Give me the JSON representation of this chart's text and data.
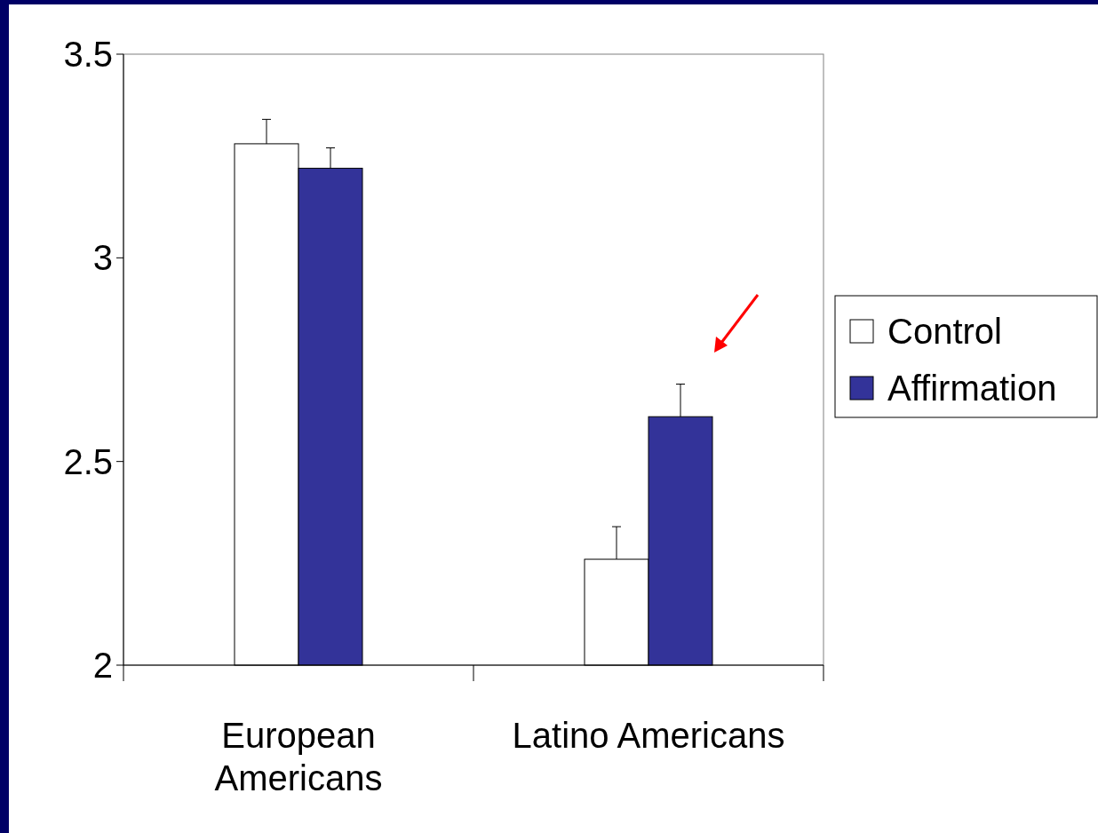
{
  "chart_data": {
    "type": "bar",
    "categories": [
      "European Americans",
      "Latino Americans"
    ],
    "series": [
      {
        "name": "Control",
        "color": "#ffffff",
        "values": [
          3.28,
          2.26
        ],
        "errors": [
          [
            3.28,
            3.34
          ],
          [
            2.26,
            2.34
          ]
        ]
      },
      {
        "name": "Affirmation",
        "color": "#333399",
        "values": [
          3.22,
          2.61
        ],
        "errors": [
          [
            3.22,
            3.27
          ],
          [
            2.61,
            2.69
          ]
        ]
      }
    ],
    "ylim": [
      2,
      3.5
    ],
    "yticks": [
      2,
      2.5,
      3,
      3.5
    ],
    "grid": false,
    "legend": "right"
  }
}
